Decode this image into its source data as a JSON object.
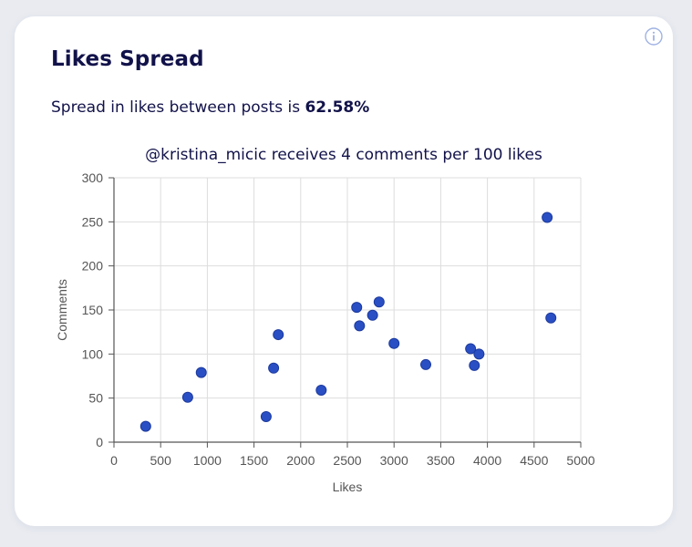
{
  "card": {
    "title": "Likes Spread",
    "summary_prefix": "Spread in likes between posts is",
    "summary_value": "62.58%",
    "info_icon": "info-circle-icon"
  },
  "colors": {
    "background": "#e9ebf1",
    "card": "#ffffff",
    "title_text": "#12124a",
    "point_fill": "#2a4fc4",
    "point_stroke": "#1c3a9e",
    "grid": "#dddddd",
    "axis": "#555555",
    "info_icon": "#9fb3e3"
  },
  "chart_data": {
    "type": "scatter",
    "title": "@kristina_micic receives 4 comments per 100 likes",
    "xlabel": "Likes",
    "ylabel": "Comments",
    "xlim": [
      0,
      5000
    ],
    "ylim": [
      0,
      300
    ],
    "xticks": [
      0,
      500,
      1000,
      1500,
      2000,
      2500,
      3000,
      3500,
      4000,
      4500,
      5000
    ],
    "yticks": [
      0,
      50,
      100,
      150,
      200,
      250,
      300
    ],
    "grid": true,
    "points": [
      {
        "x": 340,
        "y": 18
      },
      {
        "x": 790,
        "y": 51
      },
      {
        "x": 935,
        "y": 79
      },
      {
        "x": 1630,
        "y": 29
      },
      {
        "x": 1710,
        "y": 84
      },
      {
        "x": 1760,
        "y": 122
      },
      {
        "x": 2220,
        "y": 59
      },
      {
        "x": 2600,
        "y": 153
      },
      {
        "x": 2630,
        "y": 132
      },
      {
        "x": 2770,
        "y": 144
      },
      {
        "x": 2840,
        "y": 159
      },
      {
        "x": 3000,
        "y": 112
      },
      {
        "x": 3340,
        "y": 88
      },
      {
        "x": 3820,
        "y": 106
      },
      {
        "x": 3860,
        "y": 87
      },
      {
        "x": 3910,
        "y": 100
      },
      {
        "x": 4640,
        "y": 255
      },
      {
        "x": 4680,
        "y": 141
      }
    ]
  }
}
